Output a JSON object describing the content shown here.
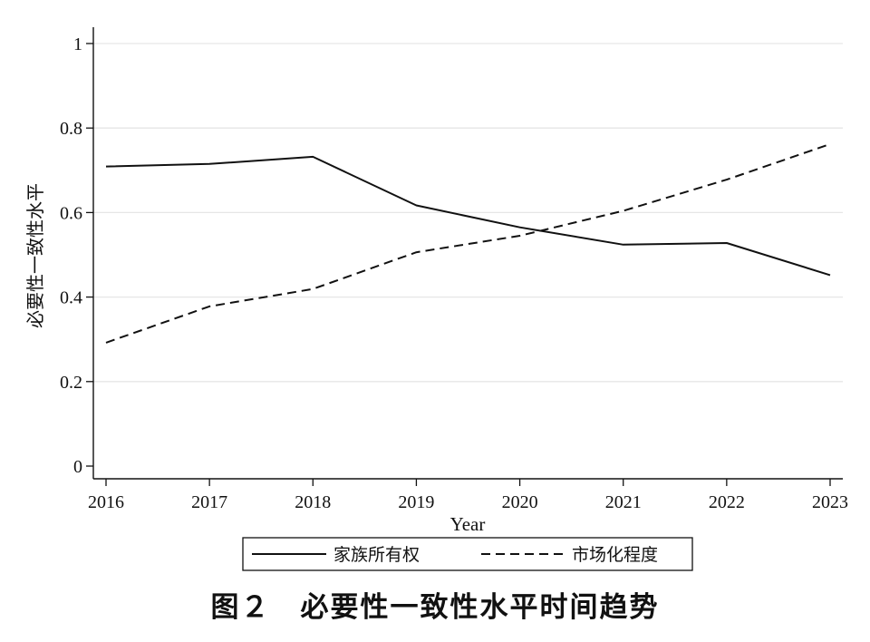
{
  "caption": "图２　必要性一致性水平时间趋势",
  "chart_data": {
    "type": "line",
    "title": "",
    "xlabel": "Year",
    "ylabel": "必要性一致性水平",
    "x": [
      2016,
      2017,
      2018,
      2019,
      2020,
      2021,
      2022,
      2023
    ],
    "ylim": [
      0,
      1
    ],
    "yticks": [
      "0",
      "0.2",
      "0.4",
      "0.6",
      "0.8",
      "1"
    ],
    "grid": true,
    "legend_position": "bottom",
    "series": [
      {
        "name": "家族所有权",
        "style": "solid",
        "color": "#111111",
        "values": [
          0.709,
          0.715,
          0.732,
          0.617,
          0.565,
          0.524,
          0.528,
          0.452
        ]
      },
      {
        "name": "市场化程度",
        "style": "dashed",
        "color": "#111111",
        "values": [
          0.292,
          0.378,
          0.419,
          0.506,
          0.545,
          0.604,
          0.678,
          0.762
        ]
      }
    ]
  }
}
